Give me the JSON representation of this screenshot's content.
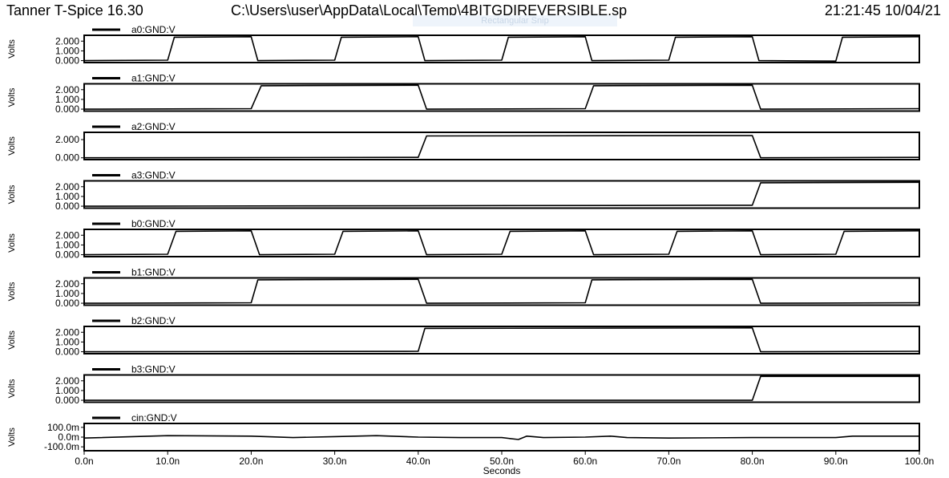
{
  "header": {
    "app": "Tanner T-Spice 16.30",
    "file": "C:\\Users\\user\\AppData\\Local\\Temp\\4BITGDIREVERSIBLE.sp",
    "timestamp": "21:21:45 10/04/21",
    "overlay": "Rectangular Snip"
  },
  "chart_data": {
    "type": "line",
    "x_unit": "ns",
    "xlabel": "Seconds",
    "xlim": [
      0,
      100
    ],
    "x_ticks": [
      "0.0n",
      "10.0n",
      "20.0n",
      "30.0n",
      "40.0n",
      "50.0n",
      "60.0n",
      "70.0n",
      "80.0n",
      "90.0n",
      "100.0n"
    ],
    "ylabel": "Volts",
    "line_color": "#000000",
    "grid": false,
    "legend_placement": "top-left of each panel",
    "panels": [
      {
        "name": "a0:GND:V",
        "y_ticks": [
          "2.000",
          "1.000",
          "0.000"
        ],
        "ylim": [
          -0.2,
          2.6
        ],
        "y_tick_values": [
          2,
          1,
          0
        ],
        "x": [
          0,
          10,
          10.8,
          20,
          20.8,
          30,
          30.8,
          40,
          40.8,
          50,
          50.8,
          60,
          60.8,
          70,
          70.8,
          80,
          80.8,
          90,
          90.8,
          100
        ],
        "y": [
          0,
          0.05,
          2.4,
          2.45,
          0,
          0.05,
          2.4,
          2.45,
          0,
          0.05,
          2.4,
          2.45,
          0,
          0.05,
          2.4,
          2.45,
          0,
          -0.05,
          2.4,
          2.45
        ]
      },
      {
        "name": "a1:GND:V",
        "y_ticks": [
          "2.000",
          "1.000",
          "0.000"
        ],
        "ylim": [
          -0.2,
          2.6
        ],
        "y_tick_values": [
          2,
          1,
          0
        ],
        "x": [
          0,
          20,
          21.2,
          40,
          41,
          60,
          61,
          80,
          81,
          100
        ],
        "y": [
          0,
          0.05,
          2.4,
          2.45,
          0,
          0.05,
          2.4,
          2.45,
          0,
          0.05
        ]
      },
      {
        "name": "a2:GND:V",
        "y_ticks": [
          "2.000",
          "0.000"
        ],
        "ylim": [
          -0.2,
          2.8
        ],
        "y_tick_values": [
          2,
          0
        ],
        "x": [
          0,
          40,
          41,
          80,
          81,
          100
        ],
        "y": [
          0,
          0.05,
          2.4,
          2.45,
          0,
          0.05
        ]
      },
      {
        "name": "a3:GND:V",
        "y_ticks": [
          "2.000",
          "1.000",
          "0.000"
        ],
        "ylim": [
          -0.2,
          2.6
        ],
        "y_tick_values": [
          2,
          1,
          0
        ],
        "x": [
          0,
          80,
          81,
          100
        ],
        "y": [
          0,
          0.1,
          2.4,
          2.45
        ]
      },
      {
        "name": "b0:GND:V",
        "y_ticks": [
          "2.000",
          "1.000",
          "0.000"
        ],
        "ylim": [
          -0.2,
          2.6
        ],
        "y_tick_values": [
          2,
          1,
          0
        ],
        "x": [
          0,
          10,
          11,
          20,
          21,
          30,
          31,
          40,
          41,
          50,
          51,
          60,
          61,
          70,
          71,
          80,
          81,
          90,
          91,
          100
        ],
        "y": [
          0,
          0.05,
          2.4,
          2.45,
          0,
          0.05,
          2.4,
          2.45,
          0,
          0.05,
          2.4,
          2.45,
          0,
          0.05,
          2.4,
          2.45,
          0,
          0.05,
          2.4,
          2.45
        ]
      },
      {
        "name": "b1:GND:V",
        "y_ticks": [
          "2.000",
          "1.000",
          "0.000"
        ],
        "ylim": [
          -0.2,
          2.6
        ],
        "y_tick_values": [
          2,
          1,
          0
        ],
        "x": [
          0,
          20,
          20.8,
          40,
          41,
          60,
          60.8,
          80,
          81,
          100
        ],
        "y": [
          0,
          0.05,
          2.4,
          2.45,
          0,
          0.05,
          2.4,
          2.45,
          0,
          0.05
        ]
      },
      {
        "name": "b2:GND:V",
        "y_ticks": [
          "2.000",
          "1.000",
          "0.000"
        ],
        "ylim": [
          -0.2,
          2.6
        ],
        "y_tick_values": [
          2,
          1,
          0
        ],
        "x": [
          0,
          40,
          40.8,
          80,
          81,
          100
        ],
        "y": [
          0,
          0.05,
          2.4,
          2.45,
          0,
          0.05
        ]
      },
      {
        "name": "b3:GND:V",
        "y_ticks": [
          "2.000",
          "1.000",
          "0.000"
        ],
        "ylim": [
          -0.2,
          2.6
        ],
        "y_tick_values": [
          2,
          1,
          0
        ],
        "x": [
          0,
          80,
          81,
          100
        ],
        "y": [
          0,
          0,
          2.45,
          2.45
        ]
      },
      {
        "name": "cin:GND:V",
        "y_ticks": [
          "100.0m",
          "0.0m",
          "-100.0m"
        ],
        "ylim": [
          -140,
          140
        ],
        "y_tick_values": [
          100,
          0,
          -100
        ],
        "x": [
          0,
          10,
          20,
          25,
          30,
          35,
          40,
          45,
          50,
          52,
          53,
          55,
          60,
          63,
          65,
          70,
          80,
          90,
          92,
          100
        ],
        "y": [
          -10,
          15,
          10,
          -5,
          5,
          15,
          0,
          -5,
          -5,
          -25,
          10,
          -5,
          0,
          10,
          -5,
          -10,
          -5,
          -5,
          10,
          10
        ]
      }
    ]
  }
}
